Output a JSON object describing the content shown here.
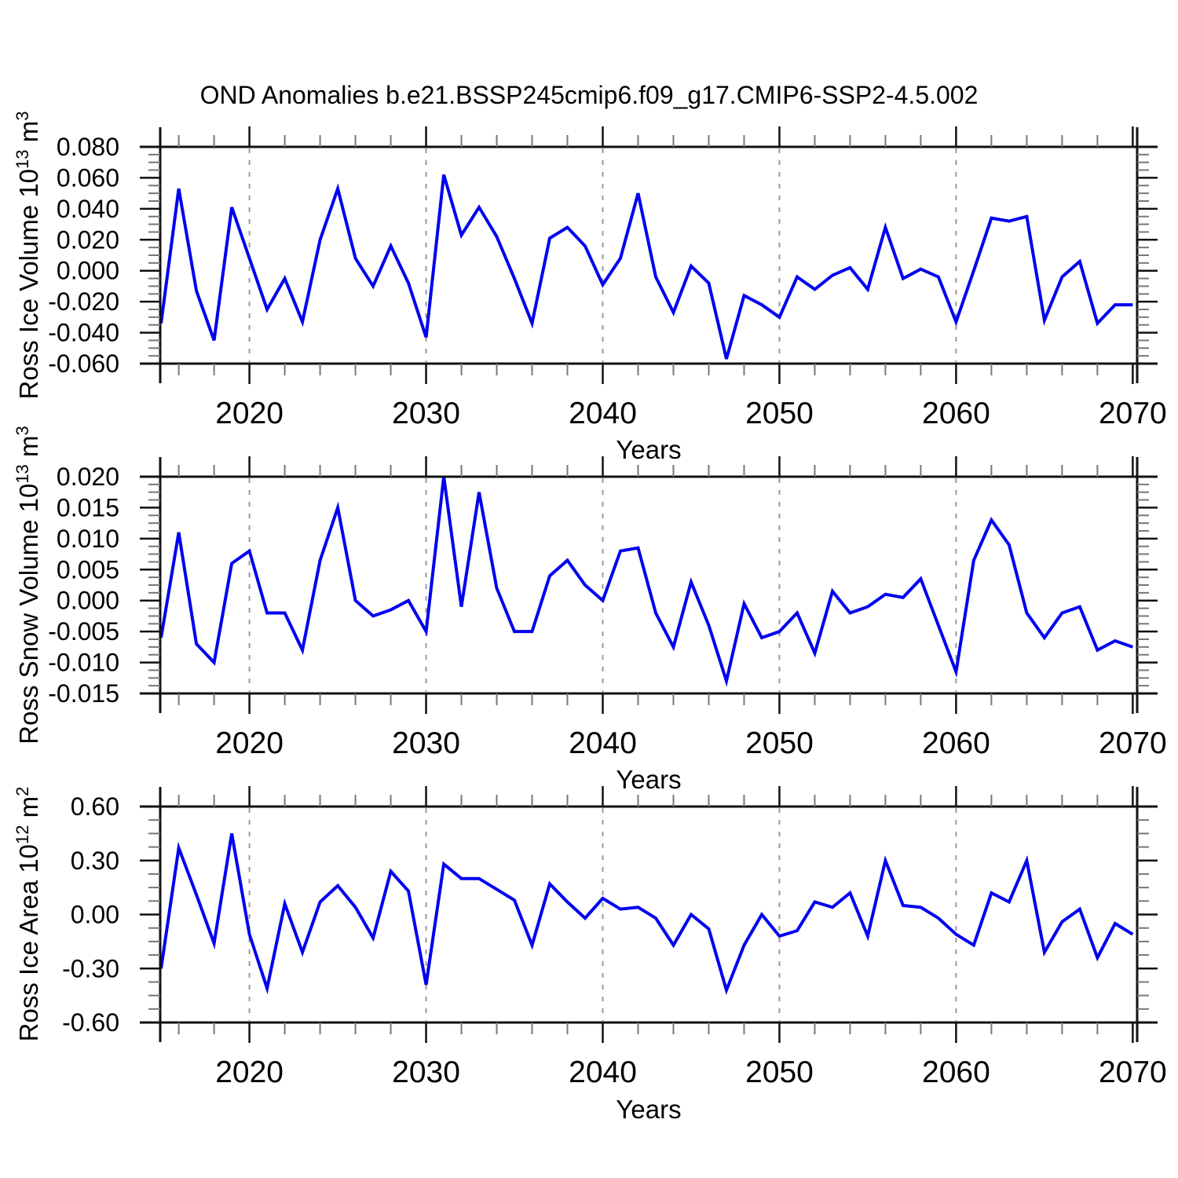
{
  "title": "OND Anomalies b.e21.BSSP245cmip6.f09_g17.CMIP6-SSP2-4.5.002",
  "style": {
    "line_color": "#0000f0",
    "grid_color": "#999999",
    "axis_color": "#111111",
    "minor_tick_color": "#777777",
    "background": "#ffffff"
  },
  "chart_data": [
    {
      "id": "ross-ice-volume",
      "type": "line",
      "xlabel": "Years",
      "ylabel": {
        "text": "Ross Ice Volume 10",
        "power": "13",
        "unit": " m",
        "unit_power": "3"
      },
      "ylabel_plain": "Ross Ice Volume 10^13 m^3",
      "years": {
        "start": 2015,
        "end": 2070,
        "step": 1
      },
      "values": [
        -0.034,
        0.053,
        -0.013,
        -0.045,
        0.041,
        0.008,
        -0.025,
        -0.005,
        -0.033,
        0.02,
        0.053,
        0.008,
        -0.01,
        0.016,
        -0.008,
        -0.043,
        0.062,
        0.023,
        0.041,
        0.022,
        -0.005,
        -0.034,
        0.021,
        0.028,
        0.016,
        -0.009,
        0.008,
        0.05,
        -0.004,
        -0.027,
        0.003,
        -0.008,
        -0.057,
        -0.016,
        -0.022,
        -0.03,
        -0.004,
        -0.012,
        -0.003,
        0.002,
        -0.012,
        0.028,
        -0.005,
        0.001,
        -0.004,
        -0.033,
        0.0,
        0.034,
        0.032,
        0.035,
        -0.032,
        -0.004,
        0.006,
        -0.034,
        -0.022,
        -0.022
      ],
      "ylim": [
        -0.06,
        0.08
      ],
      "xlim": [
        2014.95,
        2070.25
      ],
      "yticks": {
        "labels": [
          "0.080",
          "0.060",
          "0.040",
          "0.020",
          "0.000",
          "-0.020",
          "-0.040",
          "-0.060"
        ],
        "values": [
          0.08,
          0.06,
          0.04,
          0.02,
          0.0,
          -0.02,
          -0.04,
          -0.06
        ],
        "minor_step": 0.005
      },
      "xticks": {
        "labels": [
          "2020",
          "2030",
          "2040",
          "2050",
          "2060",
          "2070"
        ],
        "values": [
          2020,
          2030,
          2040,
          2050,
          2060,
          2070
        ],
        "minor_step": 2,
        "minor_start": 2016
      },
      "gridline_years": [
        2020,
        2030,
        2040,
        2050,
        2060
      ],
      "grid": "vertical-dashed",
      "legend": "none"
    },
    {
      "id": "ross-snow-volume",
      "type": "line",
      "xlabel": "Years",
      "ylabel": {
        "text": "Ross Snow Volume 10",
        "power": "13",
        "unit": " m",
        "unit_power": "3"
      },
      "ylabel_plain": "Ross Snow Volume 10^13 m^3",
      "years": {
        "start": 2015,
        "end": 2070,
        "step": 1
      },
      "values": [
        -0.006,
        0.011,
        -0.007,
        -0.01,
        0.006,
        0.008,
        -0.002,
        -0.002,
        -0.008,
        0.0065,
        0.015,
        0.0,
        -0.0025,
        -0.0015,
        0.0,
        -0.005,
        0.02,
        -0.001,
        0.0175,
        0.002,
        -0.005,
        -0.005,
        0.004,
        0.0065,
        0.0025,
        0.0,
        0.008,
        0.0085,
        -0.002,
        -0.0075,
        0.003,
        -0.004,
        -0.013,
        -0.0005,
        -0.006,
        -0.005,
        -0.002,
        -0.0085,
        0.0015,
        -0.002,
        -0.001,
        0.001,
        0.0005,
        0.0035,
        -0.004,
        -0.0115,
        0.0065,
        0.013,
        0.009,
        -0.002,
        -0.006,
        -0.002,
        -0.001,
        -0.008,
        -0.0065,
        -0.0075
      ],
      "ylim": [
        -0.015,
        0.02
      ],
      "xlim": [
        2014.95,
        2070.25
      ],
      "yticks": {
        "labels": [
          "0.020",
          "0.015",
          "0.010",
          "0.005",
          "0.000",
          "-0.005",
          "-0.010",
          "-0.015"
        ],
        "values": [
          0.02,
          0.015,
          0.01,
          0.005,
          0.0,
          -0.005,
          -0.01,
          -0.015
        ],
        "minor_step": 0.00125
      },
      "xticks": {
        "labels": [
          "2020",
          "2030",
          "2040",
          "2050",
          "2060",
          "2070"
        ],
        "values": [
          2020,
          2030,
          2040,
          2050,
          2060,
          2070
        ],
        "minor_step": 2,
        "minor_start": 2016
      },
      "gridline_years": [
        2020,
        2030,
        2040,
        2050,
        2060
      ],
      "grid": "vertical-dashed",
      "legend": "none"
    },
    {
      "id": "ross-ice-area",
      "type": "line",
      "xlabel": "Years",
      "ylabel": {
        "text": "Ross Ice Area 10",
        "power": "12",
        "unit": " m",
        "unit_power": "2"
      },
      "ylabel_plain": "Ross Ice Area 10^12 m^2",
      "years": {
        "start": 2015,
        "end": 2070,
        "step": 1
      },
      "values": [
        -0.3,
        0.37,
        0.11,
        -0.16,
        0.45,
        -0.11,
        -0.41,
        0.06,
        -0.21,
        0.07,
        0.16,
        0.04,
        -0.13,
        0.24,
        0.13,
        -0.39,
        0.28,
        0.2,
        0.2,
        0.14,
        0.08,
        -0.17,
        0.17,
        0.07,
        -0.02,
        0.09,
        0.03,
        0.04,
        -0.02,
        -0.17,
        0.0,
        -0.08,
        -0.42,
        -0.17,
        0.0,
        -0.12,
        -0.09,
        0.07,
        0.04,
        0.12,
        -0.12,
        0.3,
        0.05,
        0.04,
        -0.02,
        -0.11,
        -0.17,
        0.12,
        0.07,
        0.3,
        -0.21,
        -0.04,
        0.03,
        -0.24,
        -0.05,
        -0.11
      ],
      "ylim": [
        -0.6,
        0.6
      ],
      "xlim": [
        2014.95,
        2070.25
      ],
      "yticks": {
        "labels": [
          "0.60",
          "0.30",
          "0.00",
          "-0.30",
          "-0.60"
        ],
        "values": [
          0.6,
          0.3,
          0.0,
          -0.3,
          -0.6
        ],
        "minor_step": 0.075
      },
      "xticks": {
        "labels": [
          "2020",
          "2030",
          "2040",
          "2050",
          "2060",
          "2070"
        ],
        "values": [
          2020,
          2030,
          2040,
          2050,
          2060,
          2070
        ],
        "minor_step": 2,
        "minor_start": 2016
      },
      "gridline_years": [
        2020,
        2030,
        2040,
        2050,
        2060
      ],
      "grid": "vertical-dashed",
      "legend": "none"
    }
  ]
}
